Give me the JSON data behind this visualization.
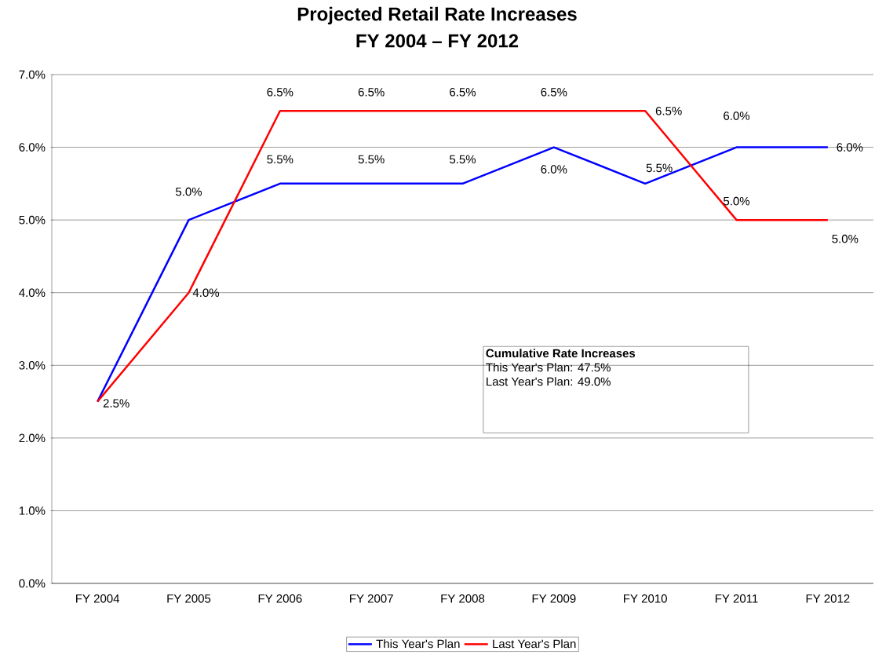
{
  "chart_data": {
    "type": "line",
    "title": "Projected Retail Rate Increases",
    "subtitle": "FY 2004 – FY 2012",
    "categories": [
      "FY 2004",
      "FY 2005",
      "FY 2006",
      "FY 2007",
      "FY 2008",
      "FY 2009",
      "FY 2010",
      "FY 2011",
      "FY 2012"
    ],
    "series": [
      {
        "name": "This Year's Plan",
        "color": "#0000ff",
        "values": [
          2.5,
          5.0,
          5.5,
          5.5,
          5.5,
          6.0,
          5.5,
          6.0,
          6.0
        ],
        "value_labels": [
          "2.5%",
          "5.0%",
          "5.5%",
          "5.5%",
          "5.5%",
          "6.0%",
          "5.5%",
          "6.0%",
          "6.0%"
        ]
      },
      {
        "name": "Last Year's Plan",
        "color": "#ff0000",
        "values": [
          2.5,
          4.0,
          6.5,
          6.5,
          6.5,
          6.5,
          6.5,
          5.0,
          5.0
        ],
        "value_labels": [
          null,
          "4.0%",
          "6.5%",
          "6.5%",
          "6.5%",
          "6.5%",
          "6.5%",
          "5.0%",
          "5.0%"
        ]
      }
    ],
    "ylim": [
      0,
      7
    ],
    "yticks": [
      {
        "value": 0,
        "label": "0.0%"
      },
      {
        "value": 1,
        "label": "1.0%"
      },
      {
        "value": 2,
        "label": "2.0%"
      },
      {
        "value": 3,
        "label": "3.0%"
      },
      {
        "value": 4,
        "label": "4.0%"
      },
      {
        "value": 5,
        "label": "5.0%"
      },
      {
        "value": 6,
        "label": "6.0%"
      },
      {
        "value": 7,
        "label": "7.0%"
      }
    ],
    "grid": "y",
    "legend": "bottom",
    "marker": "none",
    "line_style": "solid",
    "annotations": [
      "Cumulative Rate Increases",
      "This Year's Plan:  47.5%",
      "Last Year's Plan:  49.0%"
    ]
  }
}
